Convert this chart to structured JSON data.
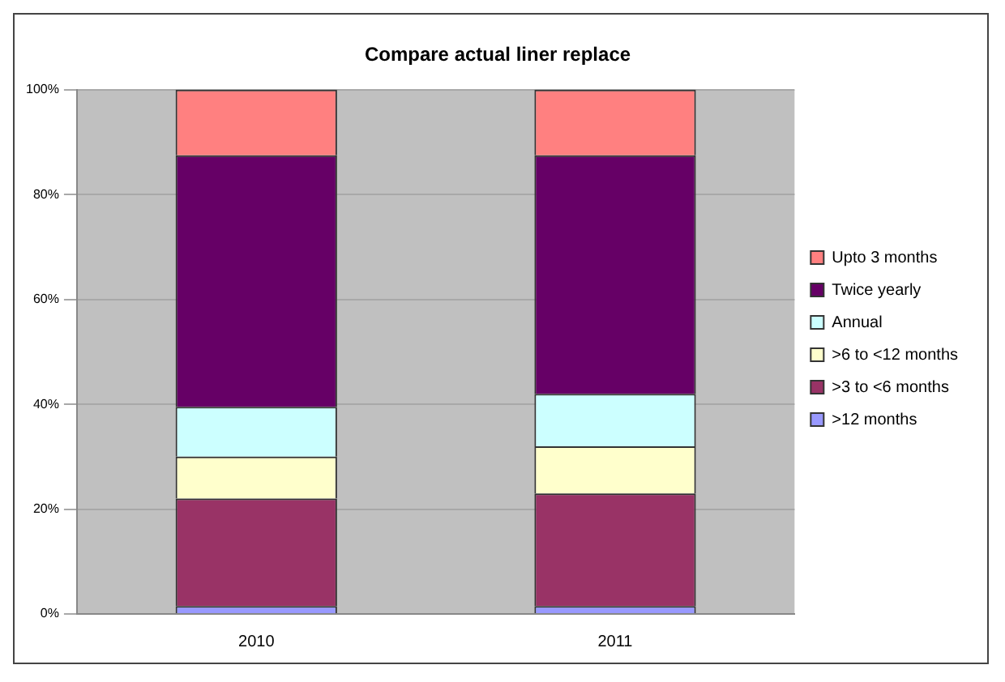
{
  "chart_data": {
    "type": "bar",
    "title": "Compare actual liner replace",
    "categories": [
      "2010",
      "2011"
    ],
    "stacked": true,
    "series": [
      {
        "name": ">12 months",
        "color": "#9999ff",
        "values": [
          1.5,
          1.5
        ]
      },
      {
        "name": ">3 to <6 months",
        "color": "#993366",
        "values": [
          20.5,
          21.5
        ]
      },
      {
        "name": ">6 to <12 months",
        "color": "#ffffcc",
        "values": [
          8,
          9
        ]
      },
      {
        "name": "Annual",
        "color": "#ccffff",
        "values": [
          9.5,
          10
        ]
      },
      {
        "name": "Twice yearly",
        "color": "#660066",
        "values": [
          48,
          45.5
        ]
      },
      {
        "name": "Upto 3 months",
        "color": "#ff8080",
        "values": [
          12.5,
          12.5
        ]
      }
    ],
    "ylim": [
      0,
      100
    ],
    "yticks": [
      {
        "value": 0,
        "label": "0%"
      },
      {
        "value": 20,
        "label": "20%"
      },
      {
        "value": 40,
        "label": "40%"
      },
      {
        "value": 60,
        "label": "60%"
      },
      {
        "value": 80,
        "label": "80%"
      },
      {
        "value": 100,
        "label": "100%"
      }
    ],
    "grid": "y",
    "legend": "right"
  }
}
